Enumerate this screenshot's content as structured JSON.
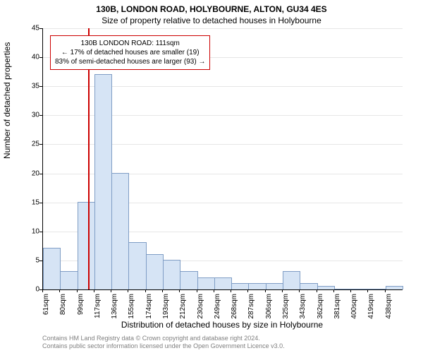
{
  "titles": {
    "line1": "130B, LONDON ROAD, HOLYBOURNE, ALTON, GU34 4ES",
    "line2": "Size of property relative to detached houses in Holybourne"
  },
  "ylabel": "Number of detached properties",
  "xlabel": "Distribution of detached houses by size in Holybourne",
  "chart": {
    "type": "histogram",
    "ylim": [
      0,
      45
    ],
    "ytick_step": 5,
    "yticks": [
      0,
      5,
      10,
      15,
      20,
      25,
      30,
      35,
      40,
      45
    ],
    "xtick_labels": [
      "61sqm",
      "80sqm",
      "99sqm",
      "117sqm",
      "136sqm",
      "155sqm",
      "174sqm",
      "193sqm",
      "212sqm",
      "230sqm",
      "249sqm",
      "268sqm",
      "287sqm",
      "306sqm",
      "325sqm",
      "343sqm",
      "362sqm",
      "381sqm",
      "400sqm",
      "419sqm",
      "438sqm"
    ],
    "bars": [
      7,
      3,
      15,
      37,
      20,
      8,
      6,
      5,
      3,
      2,
      2,
      1,
      1,
      1,
      3,
      1,
      0.5,
      0,
      0,
      0,
      0.5
    ],
    "bar_color": "#d6e4f5",
    "bar_border": "#7f9dc5",
    "grid_color": "#e6e6e6",
    "background_color": "#ffffff",
    "marker_x": 111,
    "x_start": 61,
    "x_step": 19,
    "marker_color": "#cc0000"
  },
  "annotation": {
    "line1": "130B LONDON ROAD: 111sqm",
    "line2": "← 17% of detached houses are smaller (19)",
    "line3": "83% of semi-detached houses are larger (93) →"
  },
  "footer": {
    "line1": "Contains HM Land Registry data © Crown copyright and database right 2024.",
    "line2": "Contains public sector information licensed under the Open Government Licence v3.0."
  }
}
